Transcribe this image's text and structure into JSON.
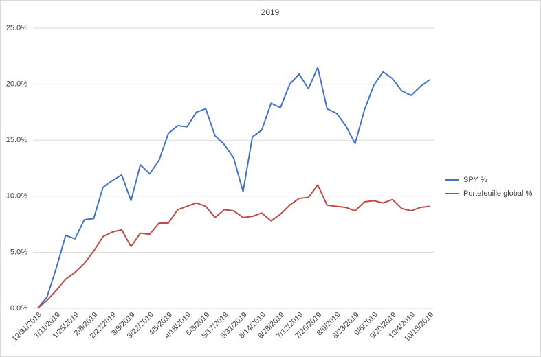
{
  "chart_data": {
    "type": "line",
    "title": "2019",
    "categories": [
      "12/31/2018",
      null,
      "1/11/2019",
      null,
      "1/25/2019",
      null,
      "2/8/2019",
      null,
      "2/22/2019",
      null,
      "3/8/2019",
      null,
      "3/22/2019",
      null,
      "4/5/2019",
      null,
      "4/18/2019",
      null,
      "5/3/2019",
      null,
      "5/17/2019",
      null,
      "5/31/2019",
      null,
      "6/14/2019",
      null,
      "6/28/2019",
      null,
      "7/12/2019",
      null,
      "7/26/2019",
      null,
      "8/9/2019",
      null,
      "8/23/2019",
      null,
      "9/6/2019",
      null,
      "9/20/2019",
      null,
      "10/4/2019",
      null,
      "10/18/2019"
    ],
    "series": [
      {
        "name": "SPY %",
        "color": "#4472c4",
        "values": [
          0,
          1.0,
          3.6,
          6.5,
          6.2,
          7.9,
          8.0,
          10.8,
          11.4,
          11.9,
          9.6,
          12.8,
          12.0,
          13.2,
          15.6,
          16.3,
          16.2,
          17.5,
          17.8,
          15.4,
          14.6,
          13.4,
          10.4,
          15.3,
          15.9,
          18.3,
          17.9,
          20.0,
          20.9,
          19.6,
          21.5,
          17.8,
          17.4,
          16.3,
          14.7,
          17.7,
          19.9,
          21.1,
          20.5,
          19.4,
          19.0,
          19.8,
          20.4
        ]
      },
      {
        "name": "Portefeuille global %",
        "color": "#be4b48",
        "values": [
          0,
          0.7,
          1.6,
          2.6,
          3.2,
          4.0,
          5.1,
          6.4,
          6.8,
          7.0,
          5.5,
          6.7,
          6.6,
          7.6,
          7.6,
          8.8,
          9.1,
          9.4,
          9.1,
          8.1,
          8.8,
          8.7,
          8.1,
          8.2,
          8.5,
          7.8,
          8.4,
          9.2,
          9.8,
          9.9,
          11.0,
          9.2,
          9.1,
          9.0,
          8.7,
          9.5,
          9.6,
          9.4,
          9.7,
          8.9,
          8.7,
          9.0,
          9.1
        ]
      }
    ],
    "ylim": [
      0,
      25
    ],
    "yticks": [
      {
        "value": 0,
        "label": "0.0%"
      },
      {
        "value": 5,
        "label": "5.0%"
      },
      {
        "value": 10,
        "label": "10.0%"
      },
      {
        "value": 15,
        "label": "15.0%"
      },
      {
        "value": 20,
        "label": "20.0%"
      },
      {
        "value": 25,
        "label": "25.0%"
      }
    ],
    "grid": true,
    "legend": "right"
  }
}
